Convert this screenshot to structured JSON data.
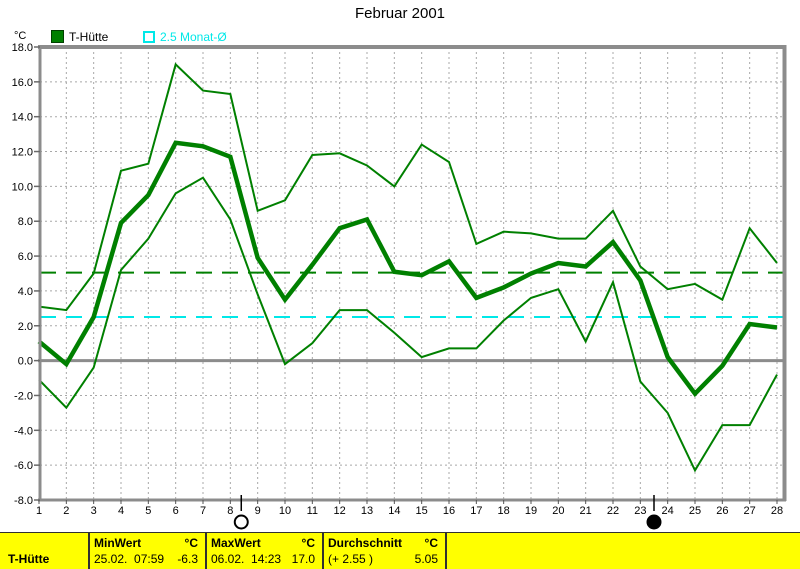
{
  "header": {
    "title": "Februar 2001"
  },
  "legend": {
    "unit": "°C",
    "series1_label": "T-Hütte",
    "series1_color": "#008000",
    "series2_label": "2.5 Monat-Ø",
    "series2_color": "#00e8e8"
  },
  "chart_data": {
    "type": "line",
    "title": "Februar 2001",
    "xlabel": "",
    "ylabel": "°C",
    "x": [
      1,
      2,
      3,
      4,
      5,
      6,
      7,
      8,
      9,
      10,
      11,
      12,
      13,
      14,
      15,
      16,
      17,
      18,
      19,
      20,
      21,
      22,
      23,
      24,
      25,
      26,
      27,
      28
    ],
    "ylim": [
      -8,
      18
    ],
    "ytick_step": 2,
    "grid": true,
    "series": [
      {
        "name": "T-Hütte Maximum",
        "style": "thin",
        "color": "#008000",
        "values": [
          3.1,
          2.9,
          5.0,
          10.9,
          11.3,
          17.0,
          15.5,
          15.3,
          8.6,
          9.2,
          11.8,
          11.9,
          11.2,
          10.0,
          12.4,
          11.4,
          6.7,
          7.4,
          7.3,
          7.0,
          7.0,
          8.6,
          5.4,
          4.1,
          4.4,
          3.5,
          7.6,
          5.6
        ]
      },
      {
        "name": "T-Hütte Minimum",
        "style": "thin",
        "color": "#008000",
        "values": [
          -1.1,
          -2.7,
          -0.4,
          5.2,
          7.0,
          9.6,
          10.5,
          8.1,
          3.8,
          -0.2,
          1.0,
          2.9,
          2.9,
          1.6,
          0.2,
          0.7,
          0.7,
          2.3,
          3.6,
          4.1,
          1.1,
          4.5,
          -1.2,
          -3.0,
          -6.3,
          -3.7,
          -3.7,
          -0.8
        ]
      },
      {
        "name": "T-Hütte Mittel",
        "style": "thick",
        "color": "#008000",
        "values": [
          1.1,
          -0.2,
          2.5,
          7.9,
          9.5,
          12.5,
          12.3,
          11.7,
          5.9,
          3.5,
          5.5,
          7.6,
          8.1,
          5.1,
          4.9,
          5.7,
          3.6,
          4.2,
          5.0,
          5.6,
          5.4,
          6.8,
          4.6,
          0.2,
          -1.9,
          -0.3,
          2.1,
          1.9
        ]
      }
    ],
    "reference_lines": [
      {
        "name": "monats-durchschnitt",
        "value": 5.05,
        "color": "#008000"
      },
      {
        "name": "2.5-monat-mittel",
        "value": 2.5,
        "color": "#00e8e8"
      }
    ],
    "moon_markers": [
      {
        "day": 8.4,
        "phase": "full"
      },
      {
        "day": 23.5,
        "phase": "new"
      }
    ],
    "legend_position": "top-left"
  },
  "statusbar": {
    "station": "T-Hütte",
    "cols": [
      {
        "header": "MinWert",
        "unit": "°C",
        "value": "25.02.  07:59",
        "reading": "-6.3"
      },
      {
        "header": "MaxWert",
        "unit": "°C",
        "value": "06.02.  14:23",
        "reading": "17.0"
      },
      {
        "header": "Durchschnitt",
        "unit": "°C",
        "value": "(+ 2.55 )",
        "reading": "5.05"
      }
    ]
  }
}
